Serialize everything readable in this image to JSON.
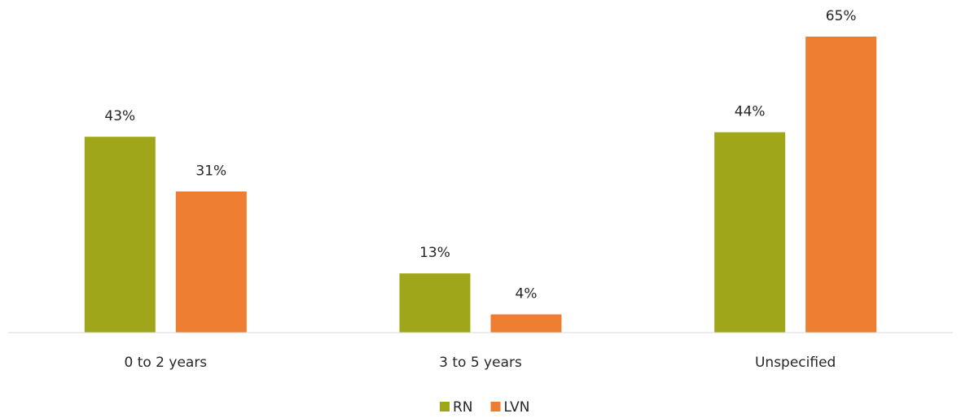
{
  "chart_data": {
    "type": "bar",
    "categories": [
      "0 to 2 years",
      "3 to 5 years",
      "Unspecified"
    ],
    "series": [
      {
        "name": "RN",
        "color": "#a0a61a",
        "values": [
          43,
          13,
          44
        ],
        "value_labels": [
          "43%",
          "13%",
          "44%"
        ]
      },
      {
        "name": "LVN",
        "color": "#ed7d31",
        "values": [
          31,
          4,
          65
        ],
        "value_labels": [
          "31%",
          "4%",
          "65%"
        ]
      }
    ],
    "legend": "bottom"
  }
}
